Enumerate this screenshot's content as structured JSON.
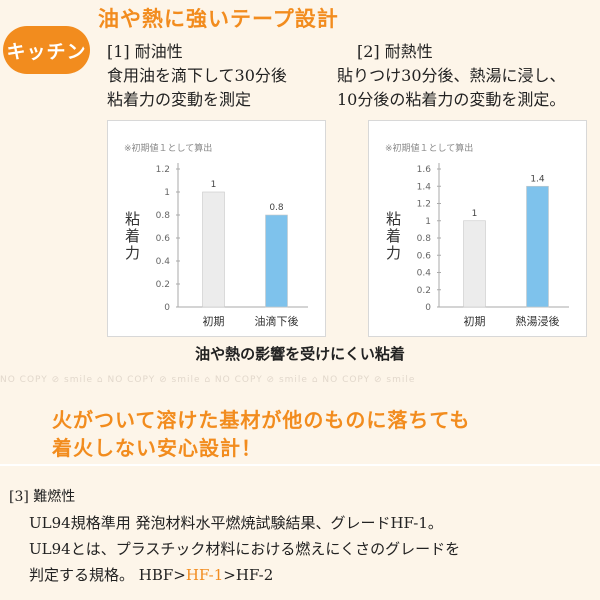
{
  "badge": "キッチン",
  "title": "油や熱に強いテープ設計",
  "sections": [
    {
      "heading": "[1] 耐油性",
      "desc": [
        "食用油を滴下して30分後",
        "粘着力の変動を測定"
      ]
    },
    {
      "heading": "[2] 耐熱性",
      "desc": [
        "貼りつけ30分後、熱湯に浸し、",
        "10分後の粘着力の変動を測定。"
      ]
    }
  ],
  "chart_note": "※初期値１として算出",
  "chart_data": [
    {
      "type": "bar",
      "categories": [
        "初期",
        "油滴下後"
      ],
      "values": [
        1,
        0.8
      ],
      "value_labels": [
        "1",
        "0.8"
      ],
      "colors": [
        "#ececec",
        "#7ec2ec"
      ],
      "ylabel": "粘着力",
      "ylim": [
        0,
        1.2
      ],
      "yticks": [
        "0",
        "0.2",
        "0.4",
        "0.6",
        "0.8",
        "1",
        "1.2"
      ],
      "grid": false
    },
    {
      "type": "bar",
      "categories": [
        "初期",
        "熱湯浸後"
      ],
      "values": [
        1,
        1.4
      ],
      "value_labels": [
        "1",
        "1.4"
      ],
      "colors": [
        "#ececec",
        "#7ec2ec"
      ],
      "ylabel": "粘着力",
      "ylim": [
        0,
        1.6
      ],
      "yticks": [
        "0",
        "0.2",
        "0.4",
        "0.6",
        "0.8",
        "1",
        "1.2",
        "1.4",
        "1.6"
      ],
      "grid": false
    }
  ],
  "caption": "油や熱の影響を受けにくい粘着",
  "watermark": "NO COPY ⊘ smile ⌂ NO COPY ⊘ smile ⌂ NO COPY ⊘ smile ⌂ NO COPY ⊘ smile",
  "headline": [
    "火がついて溶けた基材が他のものに落ちても",
    "着火しない安心設計！"
  ],
  "section3": {
    "heading": "[3] 難燃性",
    "line1": "UL94規格準用 発泡材料水平燃焼試験結果、グレードHF-1。",
    "line2": "UL94とは、プラスチック材料における燃えにくさのグレードを",
    "line3_prefix": "判定する規格。 HBF>",
    "line3_highlight": "HF-1",
    "line3_suffix": ">HF-2"
  },
  "accent_color": "#f28c1e"
}
